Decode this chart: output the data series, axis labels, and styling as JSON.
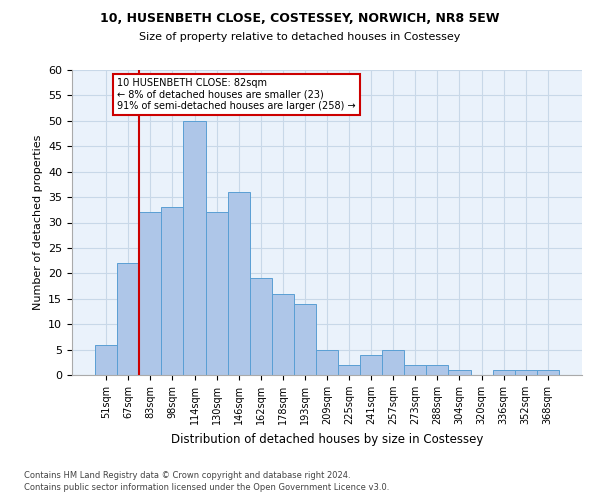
{
  "title1": "10, HUSENBETH CLOSE, COSTESSEY, NORWICH, NR8 5EW",
  "title2": "Size of property relative to detached houses in Costessey",
  "xlabel": "Distribution of detached houses by size in Costessey",
  "ylabel": "Number of detached properties",
  "categories": [
    "51sqm",
    "67sqm",
    "83sqm",
    "98sqm",
    "114sqm",
    "130sqm",
    "146sqm",
    "162sqm",
    "178sqm",
    "193sqm",
    "209sqm",
    "225sqm",
    "241sqm",
    "257sqm",
    "273sqm",
    "288sqm",
    "304sqm",
    "320sqm",
    "336sqm",
    "352sqm",
    "368sqm"
  ],
  "values": [
    6,
    22,
    32,
    33,
    50,
    32,
    36,
    19,
    16,
    14,
    5,
    2,
    4,
    5,
    2,
    2,
    1,
    0,
    1,
    1,
    1
  ],
  "bar_color": "#aec6e8",
  "bar_edge_color": "#5a9fd4",
  "vline_x": 1.5,
  "vline_color": "#cc0000",
  "annotation_text": "10 HUSENBETH CLOSE: 82sqm\n← 8% of detached houses are smaller (23)\n91% of semi-detached houses are larger (258) →",
  "annotation_box_color": "#cc0000",
  "ylim": [
    0,
    60
  ],
  "yticks": [
    0,
    5,
    10,
    15,
    20,
    25,
    30,
    35,
    40,
    45,
    50,
    55,
    60
  ],
  "footer1": "Contains HM Land Registry data © Crown copyright and database right 2024.",
  "footer2": "Contains public sector information licensed under the Open Government Licence v3.0.",
  "grid_color": "#c8d8e8",
  "bg_color": "#eaf2fb"
}
